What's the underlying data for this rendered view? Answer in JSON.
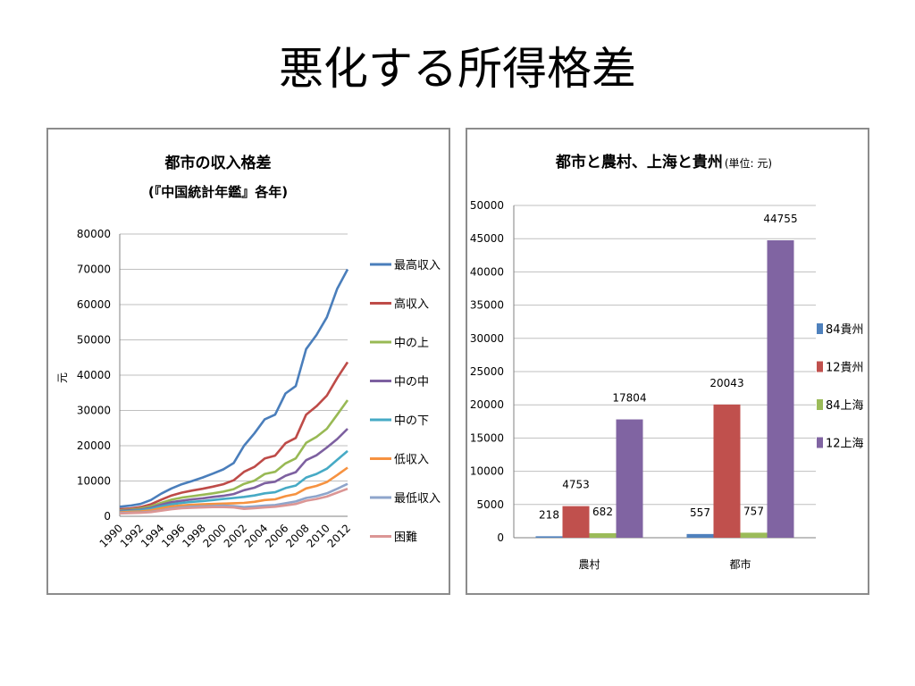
{
  "slide": {
    "title": "悪化する所得格差"
  },
  "chart_data": [
    {
      "type": "line",
      "title": "都市の収入格差",
      "subtitle": "(『中国統計年鑑』各年)",
      "xlabel": "",
      "ylabel": "元",
      "ylim": [
        0,
        80000
      ],
      "yticks": [
        0,
        10000,
        20000,
        30000,
        40000,
        50000,
        60000,
        70000,
        80000
      ],
      "x": [
        1990,
        1991,
        1992,
        1993,
        1994,
        1995,
        1996,
        1997,
        1998,
        1999,
        2000,
        2001,
        2002,
        2003,
        2004,
        2005,
        2006,
        2007,
        2008,
        2009,
        2010,
        2011,
        2012
      ],
      "xtick_labels": [
        "1990",
        "1992",
        "1994",
        "1996",
        "1998",
        "2000",
        "2002",
        "2004",
        "2006",
        "2008",
        "2010",
        "2012"
      ],
      "grid": "horizontal",
      "legend": "right",
      "series": [
        {
          "name": "最高収入",
          "color": "#4a7ebb",
          "values": [
            2700,
            3000,
            3500,
            4600,
            6400,
            7900,
            9100,
            10000,
            11000,
            12100,
            13300,
            15100,
            20000,
            23500,
            27500,
            28800,
            34800,
            36900,
            47400,
            51400,
            56400,
            64500,
            70000
          ]
        },
        {
          "name": "高収入",
          "color": "#be4b48",
          "values": [
            2000,
            2200,
            2600,
            3400,
            4700,
            5900,
            6700,
            7300,
            7800,
            8400,
            9100,
            10200,
            12600,
            14000,
            16400,
            17200,
            20700,
            22200,
            28800,
            31200,
            34200,
            39200,
            43700
          ]
        },
        {
          "name": "中の上",
          "color": "#98b954",
          "values": [
            1700,
            1900,
            2200,
            2800,
            3800,
            4700,
            5300,
            5700,
            6100,
            6500,
            7000,
            7700,
            9200,
            10100,
            12000,
            12600,
            15000,
            16400,
            20800,
            22500,
            24800,
            28800,
            32900
          ]
        },
        {
          "name": "中の中",
          "color": "#7d60a0",
          "values": [
            1500,
            1700,
            1900,
            2400,
            3300,
            4000,
            4400,
            4800,
            5100,
            5500,
            5800,
            6300,
            7400,
            8100,
            9400,
            9800,
            11500,
            12500,
            15900,
            17300,
            19500,
            21900,
            24800
          ]
        },
        {
          "name": "中の下",
          "color": "#46aac5",
          "values": [
            1300,
            1500,
            1700,
            2100,
            2800,
            3400,
            3800,
            4100,
            4300,
            4600,
            4900,
            5200,
            5500,
            5900,
            6500,
            6800,
            8000,
            8700,
            11000,
            12000,
            13500,
            16000,
            18500
          ]
        },
        {
          "name": "低収入",
          "color": "#f69240",
          "values": [
            1100,
            1300,
            1400,
            1700,
            2300,
            2800,
            3100,
            3300,
            3400,
            3500,
            3600,
            3700,
            3800,
            4100,
            4600,
            4800,
            5700,
            6300,
            7900,
            8600,
            9700,
            11700,
            13800
          ]
        },
        {
          "name": "最低収入",
          "color": "#8ea5cb",
          "values": [
            900,
            1000,
            1100,
            1300,
            1700,
            2200,
            2500,
            2700,
            2800,
            2900,
            3000,
            2900,
            2600,
            2800,
            3000,
            3200,
            3700,
            4200,
            5200,
            5700,
            6500,
            7800,
            9200
          ]
        },
        {
          "name": "困難",
          "color": "#db9695",
          "values": [
            800,
            900,
            1000,
            1200,
            1600,
            2000,
            2300,
            2400,
            2500,
            2600,
            2600,
            2500,
            2100,
            2300,
            2500,
            2700,
            3100,
            3500,
            4400,
            4900,
            5600,
            6700,
            7800
          ]
        }
      ]
    },
    {
      "type": "bar",
      "title": "都市と農村、上海と貴州",
      "title_note": "(単位: 元)",
      "categories": [
        "農村",
        "都市"
      ],
      "ylim": [
        0,
        50000
      ],
      "yticks": [
        0,
        5000,
        10000,
        15000,
        20000,
        25000,
        30000,
        35000,
        40000,
        45000,
        50000
      ],
      "grid": "horizontal",
      "legend": "right",
      "series": [
        {
          "name": "84貴州",
          "color": "#4f81bd",
          "values": [
            218,
            557
          ]
        },
        {
          "name": "12貴州",
          "color": "#c0504d",
          "values": [
            4753,
            20043
          ]
        },
        {
          "name": "84上海",
          "color": "#9bbb59",
          "values": [
            682,
            757
          ]
        },
        {
          "name": "12上海",
          "color": "#8064a2",
          "values": [
            17804,
            44755
          ]
        }
      ],
      "data_labels": [
        {
          "category": "農村",
          "labels": [
            "218",
            "4753",
            "682",
            "17804"
          ]
        },
        {
          "category": "都市",
          "labels": [
            "557",
            "20043",
            "757",
            "44755"
          ]
        }
      ]
    }
  ]
}
